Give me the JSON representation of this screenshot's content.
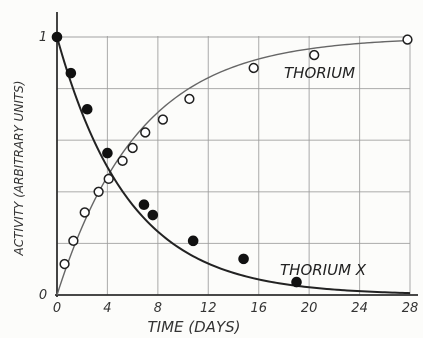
{
  "chart_data": {
    "type": "line",
    "xlabel": "TIME (DAYS)",
    "ylabel": "ACTIVITY (ARBITRARY UNITS)",
    "xlim": [
      0,
      28
    ],
    "ylim": [
      0,
      1
    ],
    "x_ticks": [
      0,
      4,
      8,
      12,
      16,
      20,
      24,
      28
    ],
    "x_tick_labels": [
      "0",
      "4",
      "8",
      "12",
      "16",
      "20",
      "24",
      "28"
    ],
    "y_ticks": [
      0,
      0.5,
      1
    ],
    "y_tick_labels": [
      "0",
      "",
      "1"
    ],
    "grid": true,
    "series": [
      {
        "name": "THORIUM",
        "marker": "open-circle",
        "points": [
          [
            0.6,
            0.12
          ],
          [
            1.3,
            0.21
          ],
          [
            2.2,
            0.32
          ],
          [
            3.3,
            0.4
          ],
          [
            4.1,
            0.45
          ],
          [
            5.2,
            0.52
          ],
          [
            6.0,
            0.57
          ],
          [
            7.0,
            0.63
          ],
          [
            8.4,
            0.68
          ],
          [
            10.5,
            0.76
          ],
          [
            15.6,
            0.88
          ],
          [
            20.4,
            0.93
          ],
          [
            27.8,
            0.99
          ]
        ]
      },
      {
        "name": "THORIUM X",
        "marker": "filled-circle",
        "points": [
          [
            0.0,
            1.0
          ],
          [
            1.1,
            0.86
          ],
          [
            2.4,
            0.72
          ],
          [
            4.0,
            0.55
          ],
          [
            6.9,
            0.35
          ],
          [
            7.6,
            0.31
          ],
          [
            10.8,
            0.21
          ],
          [
            14.8,
            0.14
          ],
          [
            19.0,
            0.05
          ]
        ]
      }
    ]
  }
}
